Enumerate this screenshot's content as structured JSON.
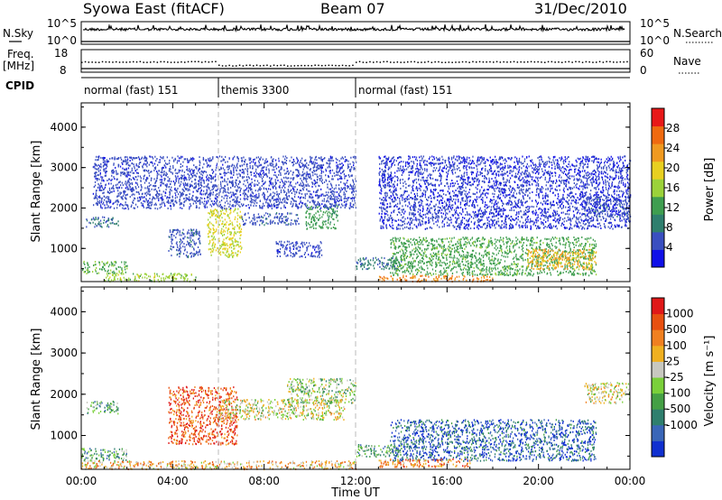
{
  "header": {
    "station": "Syowa East (fitACF)",
    "beam": "Beam 07",
    "date": "31/Dec/2010"
  },
  "nsky": {
    "label": "N.Sky",
    "right_label": "N.Search",
    "ticks_left": [
      "10^5",
      "10^0"
    ],
    "ticks_right": [
      "10^5",
      "10^0"
    ]
  },
  "freq": {
    "label_1": "Freq.",
    "label_2": "[MHz]",
    "ticks_left": [
      "18",
      "8"
    ],
    "right_label": "Nave",
    "ticks_right": [
      "60",
      "0"
    ]
  },
  "cpid": {
    "label": "CPID",
    "segments": [
      {
        "label": "normal (fast) 151",
        "start_hour": 0,
        "end_hour": 6
      },
      {
        "label": "themis 3300",
        "start_hour": 6,
        "end_hour": 12
      },
      {
        "label": "normal (fast) 151",
        "start_hour": 12,
        "end_hour": 24
      }
    ]
  },
  "time_axis": {
    "label": "Time UT",
    "ticks": [
      "00:00",
      "04:00",
      "08:00",
      "12:00",
      "16:00",
      "20:00",
      "00:00"
    ]
  },
  "chart_data": [
    {
      "type": "heatmap",
      "name": "power",
      "ylabel": "Slant Range [km]",
      "xlim_hours": [
        0,
        24
      ],
      "ylim": [
        180,
        4600
      ],
      "yticks": [
        1000,
        2000,
        3000,
        4000
      ],
      "ytick_labels": [
        "1000",
        "2000",
        "3000",
        "4000"
      ],
      "colorbar": {
        "label": "Power [dB]",
        "range": [
          0,
          32
        ],
        "tick_values": [
          4,
          8,
          12,
          16,
          20,
          24,
          28
        ],
        "tick_labels": [
          "4",
          "8",
          "12",
          "16",
          "20",
          "24",
          "28"
        ],
        "colors": [
          "#1010e8",
          "#3a4fc0",
          "#2f7f6e",
          "#3f9e50",
          "#9bd23a",
          "#e8d020",
          "#f09a20",
          "#ef6a10",
          "#e81818"
        ]
      },
      "regions": [
        {
          "t": [
            0.2,
            1.6
          ],
          "r": [
            1550,
            1800
          ],
          "level": 8
        },
        {
          "t": [
            0.0,
            2.0
          ],
          "r": [
            400,
            700
          ],
          "level": 14
        },
        {
          "t": [
            1.0,
            5.0
          ],
          "r": [
            200,
            400
          ],
          "level": 16
        },
        {
          "t": [
            3.8,
            5.2
          ],
          "r": [
            800,
            1500
          ],
          "level": 6
        },
        {
          "t": [
            5.5,
            7.0
          ],
          "r": [
            800,
            2000
          ],
          "level": 18
        },
        {
          "t": [
            7.0,
            9.5
          ],
          "r": [
            1600,
            1900
          ],
          "level": 6
        },
        {
          "t": [
            9.8,
            11.2
          ],
          "r": [
            1500,
            2100
          ],
          "level": 12
        },
        {
          "t": [
            8.5,
            10.5
          ],
          "r": [
            800,
            1200
          ],
          "level": 5
        },
        {
          "t": [
            12.0,
            14.0
          ],
          "r": [
            500,
            800
          ],
          "level": 8
        },
        {
          "t": [
            13.5,
            22.5
          ],
          "r": [
            350,
            1300
          ],
          "level": 13
        },
        {
          "t": [
            19.5,
            22.5
          ],
          "r": [
            500,
            1000
          ],
          "level": 22
        },
        {
          "t": [
            13.0,
            18.0
          ],
          "r": [
            200,
            350
          ],
          "level": 24
        },
        {
          "t": [
            22.0,
            24.0
          ],
          "r": [
            1800,
            2300
          ],
          "level": 6
        },
        {
          "t": [
            13.0,
            24.0
          ],
          "r": [
            1500,
            3300
          ],
          "level": 4
        },
        {
          "t": [
            0.5,
            12.0
          ],
          "r": [
            2000,
            3300
          ],
          "level": 5
        }
      ]
    },
    {
      "type": "heatmap",
      "name": "velocity",
      "ylabel": "Slant Range [km]",
      "xlim_hours": [
        0,
        24
      ],
      "ylim": [
        180,
        4600
      ],
      "yticks": [
        1000,
        2000,
        3000,
        4000
      ],
      "ytick_labels": [
        "1000",
        "2000",
        "3000",
        "4000"
      ],
      "colorbar": {
        "label": "Velocity [m s⁻¹]",
        "tick_labels": [
          "1000",
          "500",
          "100",
          "25",
          "-25",
          "-100",
          "-500",
          "-1000"
        ],
        "colors": [
          "#1030d0",
          "#3a66b8",
          "#2f7f6e",
          "#45a045",
          "#7ad03a",
          "#c8c8c0",
          "#f0b020",
          "#f08020",
          "#e85010",
          "#e01818"
        ]
      },
      "regions": [
        {
          "t": [
            0.2,
            1.6
          ],
          "r": [
            1550,
            1850
          ],
          "level": 3
        },
        {
          "t": [
            0.0,
            2.0
          ],
          "r": [
            400,
            700
          ],
          "level": 3
        },
        {
          "t": [
            3.8,
            6.8
          ],
          "r": [
            800,
            2200
          ],
          "level": 8
        },
        {
          "t": [
            6.0,
            11.5
          ],
          "r": [
            1400,
            1900
          ],
          "level": 5
        },
        {
          "t": [
            9.0,
            12.0
          ],
          "r": [
            1800,
            2400
          ],
          "level": 4
        },
        {
          "t": [
            12.0,
            14.0
          ],
          "r": [
            500,
            800
          ],
          "level": 3
        },
        {
          "t": [
            13.5,
            22.5
          ],
          "r": [
            400,
            1400
          ],
          "level": 1
        },
        {
          "t": [
            13.0,
            17.0
          ],
          "r": [
            250,
            450
          ],
          "level": 7
        },
        {
          "t": [
            22.0,
            24.0
          ],
          "r": [
            1800,
            2300
          ],
          "level": 5
        },
        {
          "t": [
            0.0,
            12.0
          ],
          "r": [
            200,
            400
          ],
          "level": 6
        }
      ]
    }
  ]
}
